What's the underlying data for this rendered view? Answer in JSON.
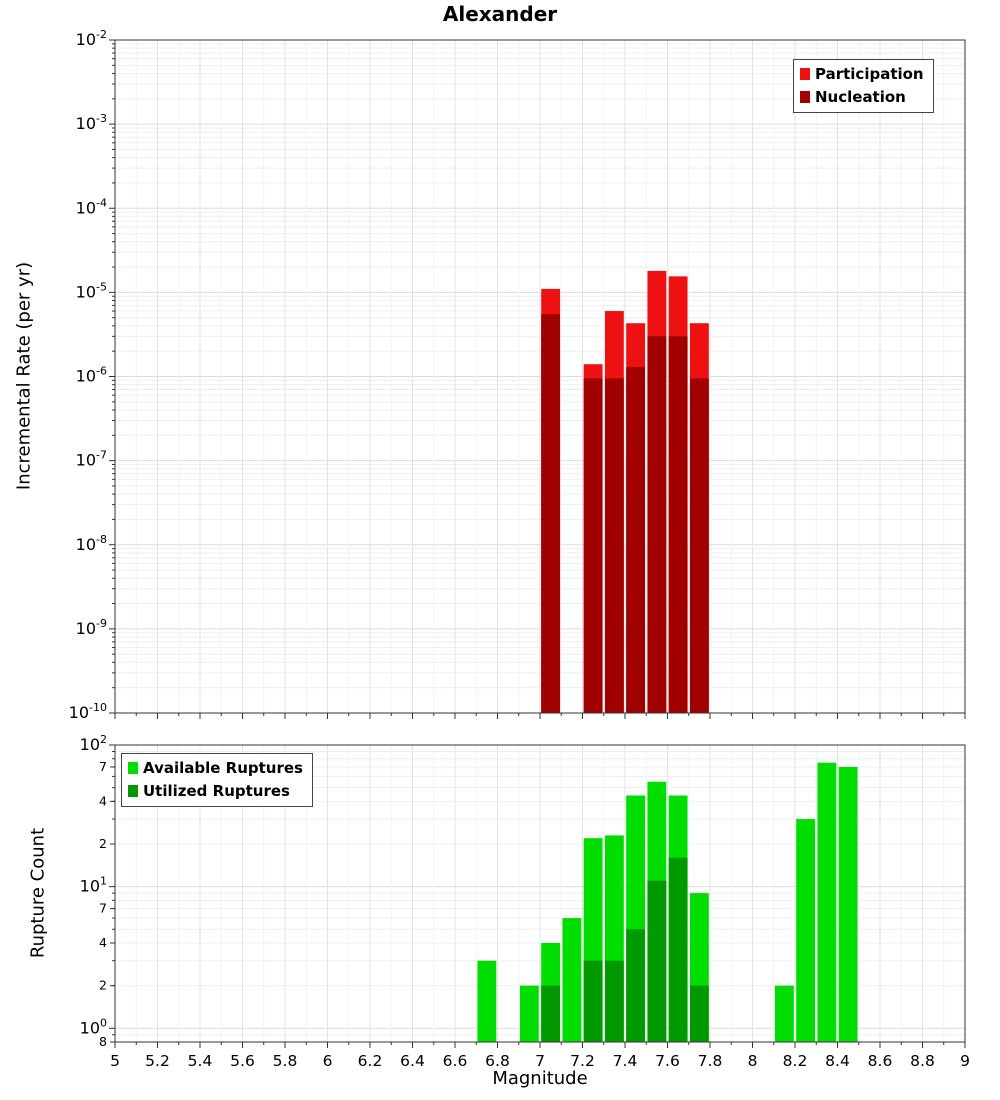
{
  "x_axis": {
    "label": "Magnitude",
    "ticks": [
      {
        "v": 5,
        "l": "5"
      },
      {
        "v": 5.2,
        "l": "5.2"
      },
      {
        "v": 5.4,
        "l": "5.4"
      },
      {
        "v": 5.6,
        "l": "5.6"
      },
      {
        "v": 5.8,
        "l": "5.8"
      },
      {
        "v": 6,
        "l": "6"
      },
      {
        "v": 6.2,
        "l": "6.2"
      },
      {
        "v": 6.4,
        "l": "6.4"
      },
      {
        "v": 6.6,
        "l": "6.6"
      },
      {
        "v": 6.8,
        "l": "6.8"
      },
      {
        "v": 7,
        "l": "7"
      },
      {
        "v": 7.2,
        "l": "7.2"
      },
      {
        "v": 7.4,
        "l": "7.4"
      },
      {
        "v": 7.6,
        "l": "7.6"
      },
      {
        "v": 7.8,
        "l": "7.8"
      },
      {
        "v": 8,
        "l": "8"
      },
      {
        "v": 8.2,
        "l": "8.2"
      },
      {
        "v": 8.4,
        "l": "8.4"
      },
      {
        "v": 8.6,
        "l": "8.6"
      },
      {
        "v": 8.8,
        "l": "8.8"
      },
      {
        "v": 9,
        "l": "9"
      }
    ]
  },
  "chart_data": [
    {
      "type": "bar",
      "title": "Alexander",
      "ylabel": "Incremental Rate (per yr)",
      "xlabel": "",
      "yscale": "log",
      "ylim": [
        1e-10,
        0.01
      ],
      "xlim": [
        5,
        9
      ],
      "bar_width": 0.1,
      "grid": true,
      "legend_position": "top-right",
      "show_xlabels": false,
      "yticks_major": [
        {
          "v": 0.01,
          "exp": "-2"
        },
        {
          "v": 0.001,
          "exp": "-3"
        },
        {
          "v": 0.0001,
          "exp": "-4"
        },
        {
          "v": 1e-05,
          "exp": "-5"
        },
        {
          "v": 1e-06,
          "exp": "-6"
        },
        {
          "v": 1e-07,
          "exp": "-7"
        },
        {
          "v": 1e-08,
          "exp": "-8"
        },
        {
          "v": 1e-09,
          "exp": "-9"
        },
        {
          "v": 1e-10,
          "exp": "-10"
        }
      ],
      "yticks_minor_labeled": [],
      "series": [
        {
          "name": "Participation",
          "color": "#ee1111",
          "x": [
            7.0,
            7.2,
            7.3,
            7.4,
            7.5,
            7.6,
            7.7
          ],
          "values": [
            1.1e-05,
            1.4e-06,
            6e-06,
            4.3e-06,
            1.8e-05,
            1.55e-05,
            4.3e-06
          ]
        },
        {
          "name": "Nucleation",
          "color": "#a00000",
          "x": [
            7.0,
            7.2,
            7.3,
            7.4,
            7.5,
            7.6,
            7.7
          ],
          "values": [
            5.5e-06,
            9.5e-07,
            9.5e-07,
            1.3e-06,
            3e-06,
            3e-06,
            9.5e-07
          ]
        }
      ]
    },
    {
      "type": "bar",
      "title": "",
      "ylabel": "Rupture Count",
      "xlabel": "Magnitude",
      "yscale": "log",
      "ylim": [
        0.8,
        100
      ],
      "xlim": [
        5,
        9
      ],
      "bar_width": 0.1,
      "grid": true,
      "legend_position": "top-left",
      "show_xlabels": true,
      "yticks_major": [
        {
          "v": 100,
          "exp": "2"
        },
        {
          "v": 10,
          "exp": "1"
        },
        {
          "v": 1,
          "exp": "0"
        }
      ],
      "yticks_minor_labeled": [
        {
          "v": 70,
          "l": "7"
        },
        {
          "v": 40,
          "l": "4"
        },
        {
          "v": 20,
          "l": "2"
        },
        {
          "v": 7,
          "l": "7"
        },
        {
          "v": 4,
          "l": "4"
        },
        {
          "v": 2,
          "l": "2"
        },
        {
          "v": 0.8,
          "l": "8"
        }
      ],
      "series": [
        {
          "name": "Available Ruptures",
          "color": "#00dd00",
          "x": [
            6.7,
            6.9,
            7.0,
            7.1,
            7.2,
            7.3,
            7.4,
            7.5,
            7.6,
            7.7,
            8.1,
            8.2,
            8.3,
            8.4
          ],
          "values": [
            3,
            2,
            4,
            6,
            22,
            23,
            44,
            55,
            44,
            9,
            2,
            30,
            75,
            70
          ]
        },
        {
          "name": "Utilized Ruptures",
          "color": "#009900",
          "x": [
            7.0,
            7.2,
            7.3,
            7.4,
            7.5,
            7.6,
            7.7
          ],
          "values": [
            2,
            3,
            3,
            5,
            11,
            16,
            2
          ]
        }
      ]
    }
  ]
}
